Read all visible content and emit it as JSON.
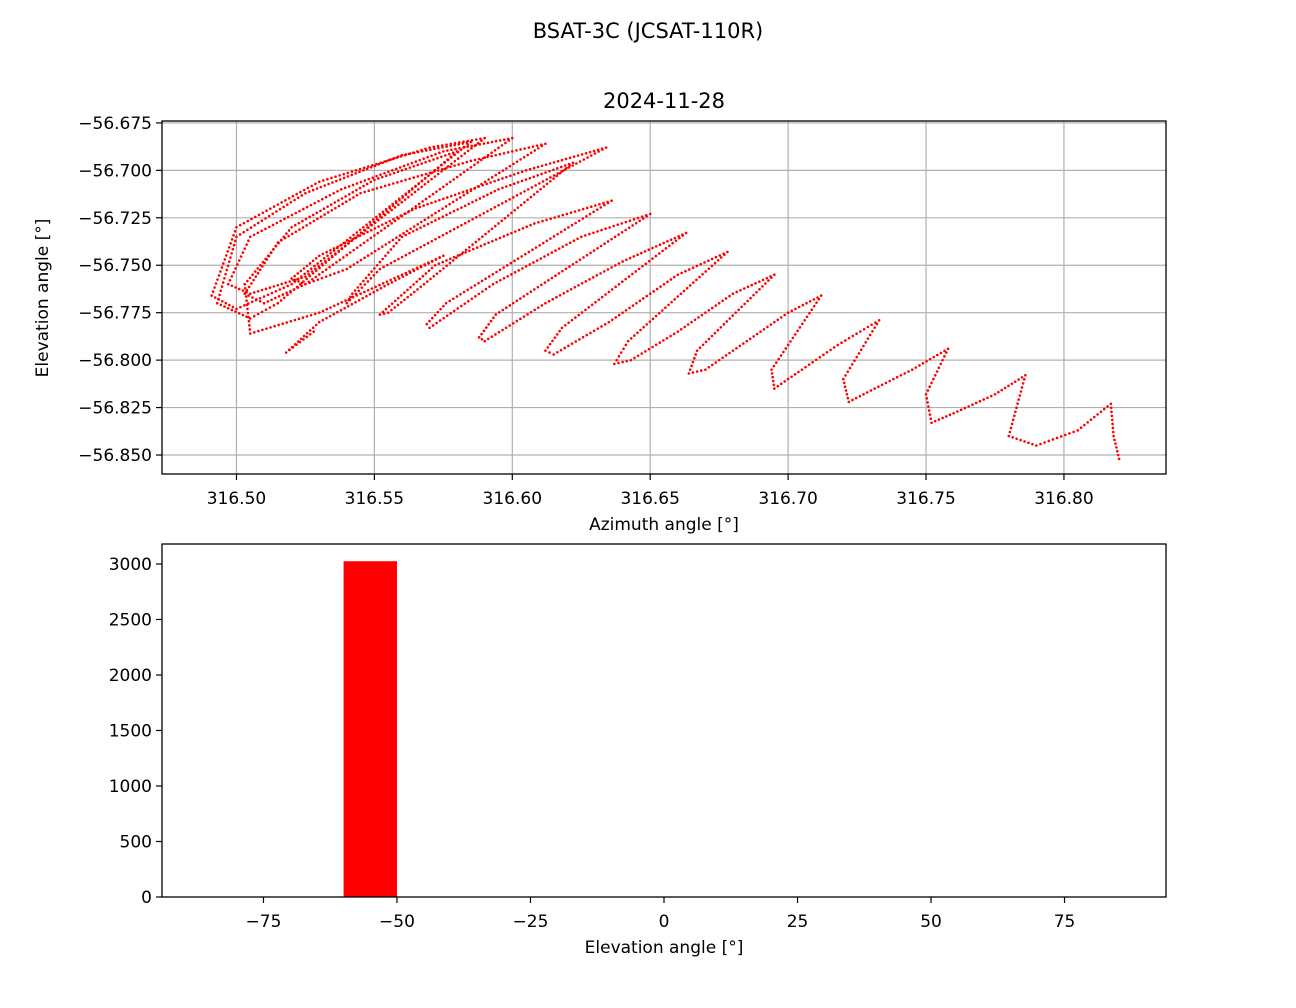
{
  "figure": {
    "suptitle": "BSAT-3C (JCSAT-110R)"
  },
  "colors": {
    "series": "#ff0000",
    "grid": "#b0b0b0",
    "axes": "#000000",
    "background": "#ffffff"
  },
  "chart_data": [
    {
      "type": "scatter",
      "title": "2024-11-28",
      "xlabel": "Azimuth angle [°]",
      "ylabel": "Elevation angle [°]",
      "xlim": [
        316.473,
        316.837
      ],
      "ylim": [
        -56.86,
        -56.674
      ],
      "xticks": [
        316.5,
        316.55,
        316.6,
        316.65,
        316.7,
        316.75,
        316.8
      ],
      "xtick_labels": [
        "316.50",
        "316.55",
        "316.60",
        "316.65",
        "316.70",
        "316.75",
        "316.80"
      ],
      "yticks": [
        -56.675,
        -56.7,
        -56.725,
        -56.75,
        -56.775,
        -56.8,
        -56.825,
        -56.85
      ],
      "ytick_labels": [
        "−56.675",
        "−56.700",
        "−56.725",
        "−56.750",
        "−56.775",
        "−56.800",
        "−56.825",
        "−56.850"
      ],
      "grid": true,
      "marker": "dot",
      "color": "#ff0000",
      "note_pattern": "dense trail of points forming repeated elongated loops drifting from (316.82, -56.852) toward (316.49, -56.768)",
      "points": [
        [
          316.82,
          -56.852
        ],
        [
          316.818,
          -56.84
        ],
        [
          316.817,
          -56.823
        ],
        [
          316.805,
          -56.837
        ],
        [
          316.79,
          -56.845
        ],
        [
          316.78,
          -56.84
        ],
        [
          316.786,
          -56.808
        ],
        [
          316.775,
          -56.818
        ],
        [
          316.76,
          -56.828
        ],
        [
          316.752,
          -56.833
        ],
        [
          316.75,
          -56.818
        ],
        [
          316.758,
          -56.794
        ],
        [
          316.745,
          -56.805
        ],
        [
          316.73,
          -56.816
        ],
        [
          316.722,
          -56.822
        ],
        [
          316.72,
          -56.81
        ],
        [
          316.733,
          -56.779
        ],
        [
          316.718,
          -56.792
        ],
        [
          316.705,
          -56.805
        ],
        [
          316.695,
          -56.815
        ],
        [
          316.694,
          -56.805
        ],
        [
          316.712,
          -56.766
        ],
        [
          316.7,
          -56.775
        ],
        [
          316.685,
          -56.79
        ],
        [
          316.67,
          -56.805
        ],
        [
          316.664,
          -56.807
        ],
        [
          316.667,
          -56.795
        ],
        [
          316.695,
          -56.755
        ],
        [
          316.68,
          -56.765
        ],
        [
          316.66,
          -56.785
        ],
        [
          316.643,
          -56.8
        ],
        [
          316.637,
          -56.802
        ],
        [
          316.642,
          -56.79
        ],
        [
          316.678,
          -56.743
        ],
        [
          316.66,
          -56.755
        ],
        [
          316.635,
          -56.78
        ],
        [
          316.615,
          -56.797
        ],
        [
          316.612,
          -56.795
        ],
        [
          316.618,
          -56.783
        ],
        [
          316.663,
          -56.733
        ],
        [
          316.64,
          -56.748
        ],
        [
          316.612,
          -56.77
        ],
        [
          316.59,
          -56.79
        ],
        [
          316.588,
          -56.788
        ],
        [
          316.594,
          -56.776
        ],
        [
          316.65,
          -56.723
        ],
        [
          316.625,
          -56.735
        ],
        [
          316.593,
          -56.76
        ],
        [
          316.57,
          -56.783
        ],
        [
          316.569,
          -56.781
        ],
        [
          316.576,
          -56.77
        ],
        [
          316.636,
          -56.716
        ],
        [
          316.608,
          -56.728
        ],
        [
          316.572,
          -56.75
        ],
        [
          316.552,
          -56.776
        ],
        [
          316.555,
          -56.775
        ],
        [
          316.568,
          -56.76
        ],
        [
          316.622,
          -56.696
        ],
        [
          316.595,
          -56.71
        ],
        [
          316.56,
          -56.735
        ],
        [
          316.542,
          -56.765
        ],
        [
          316.54,
          -56.77
        ],
        [
          316.552,
          -56.752
        ],
        [
          316.634,
          -56.688
        ],
        [
          316.605,
          -56.7
        ],
        [
          316.565,
          -56.72
        ],
        [
          316.53,
          -56.745
        ],
        [
          316.52,
          -56.757
        ],
        [
          316.525,
          -56.76
        ],
        [
          316.54,
          -56.752
        ],
        [
          316.612,
          -56.686
        ],
        [
          316.585,
          -56.695
        ],
        [
          316.545,
          -56.712
        ],
        [
          316.515,
          -56.738
        ],
        [
          316.503,
          -56.765
        ],
        [
          316.51,
          -56.77
        ],
        [
          316.525,
          -56.76
        ],
        [
          316.6,
          -56.683
        ],
        [
          316.575,
          -56.69
        ],
        [
          316.538,
          -56.71
        ],
        [
          316.505,
          -56.735
        ],
        [
          316.497,
          -56.76
        ],
        [
          316.505,
          -56.765
        ],
        [
          316.525,
          -56.756
        ],
        [
          316.59,
          -56.683
        ],
        [
          316.57,
          -56.688
        ],
        [
          316.53,
          -56.706
        ],
        [
          316.5,
          -56.73
        ],
        [
          316.491,
          -56.766
        ],
        [
          316.5,
          -56.773
        ],
        [
          316.52,
          -56.76
        ],
        [
          316.585,
          -56.685
        ],
        [
          316.56,
          -56.692
        ],
        [
          316.525,
          -56.712
        ],
        [
          316.5,
          -56.735
        ],
        [
          316.493,
          -56.77
        ],
        [
          316.505,
          -56.778
        ],
        [
          316.515,
          -56.77
        ],
        [
          316.58,
          -56.69
        ],
        [
          316.55,
          -56.705
        ],
        [
          316.52,
          -56.73
        ],
        [
          316.503,
          -56.76
        ],
        [
          316.505,
          -56.786
        ],
        [
          316.53,
          -56.775
        ],
        [
          316.575,
          -56.745
        ],
        [
          316.555,
          -56.76
        ],
        [
          316.53,
          -56.78
        ],
        [
          316.518,
          -56.796
        ],
        [
          316.528,
          -56.785
        ]
      ]
    },
    {
      "type": "bar",
      "xlabel": "Elevation angle [°]",
      "ylabel": "",
      "xlim": [
        -94,
        94
      ],
      "ylim": [
        0,
        3180
      ],
      "xticks": [
        -75,
        -50,
        -25,
        0,
        25,
        50,
        75
      ],
      "xtick_labels": [
        "−75",
        "−50",
        "−25",
        "0",
        "25",
        "50",
        "75"
      ],
      "yticks": [
        0,
        500,
        1000,
        1500,
        2000,
        2500,
        3000
      ],
      "ytick_labels": [
        "0",
        "500",
        "1000",
        "1500",
        "2000",
        "2500",
        "3000"
      ],
      "grid": false,
      "color": "#ff0000",
      "bins": [
        {
          "x0": -60,
          "x1": -50,
          "count": 3025
        }
      ]
    }
  ]
}
